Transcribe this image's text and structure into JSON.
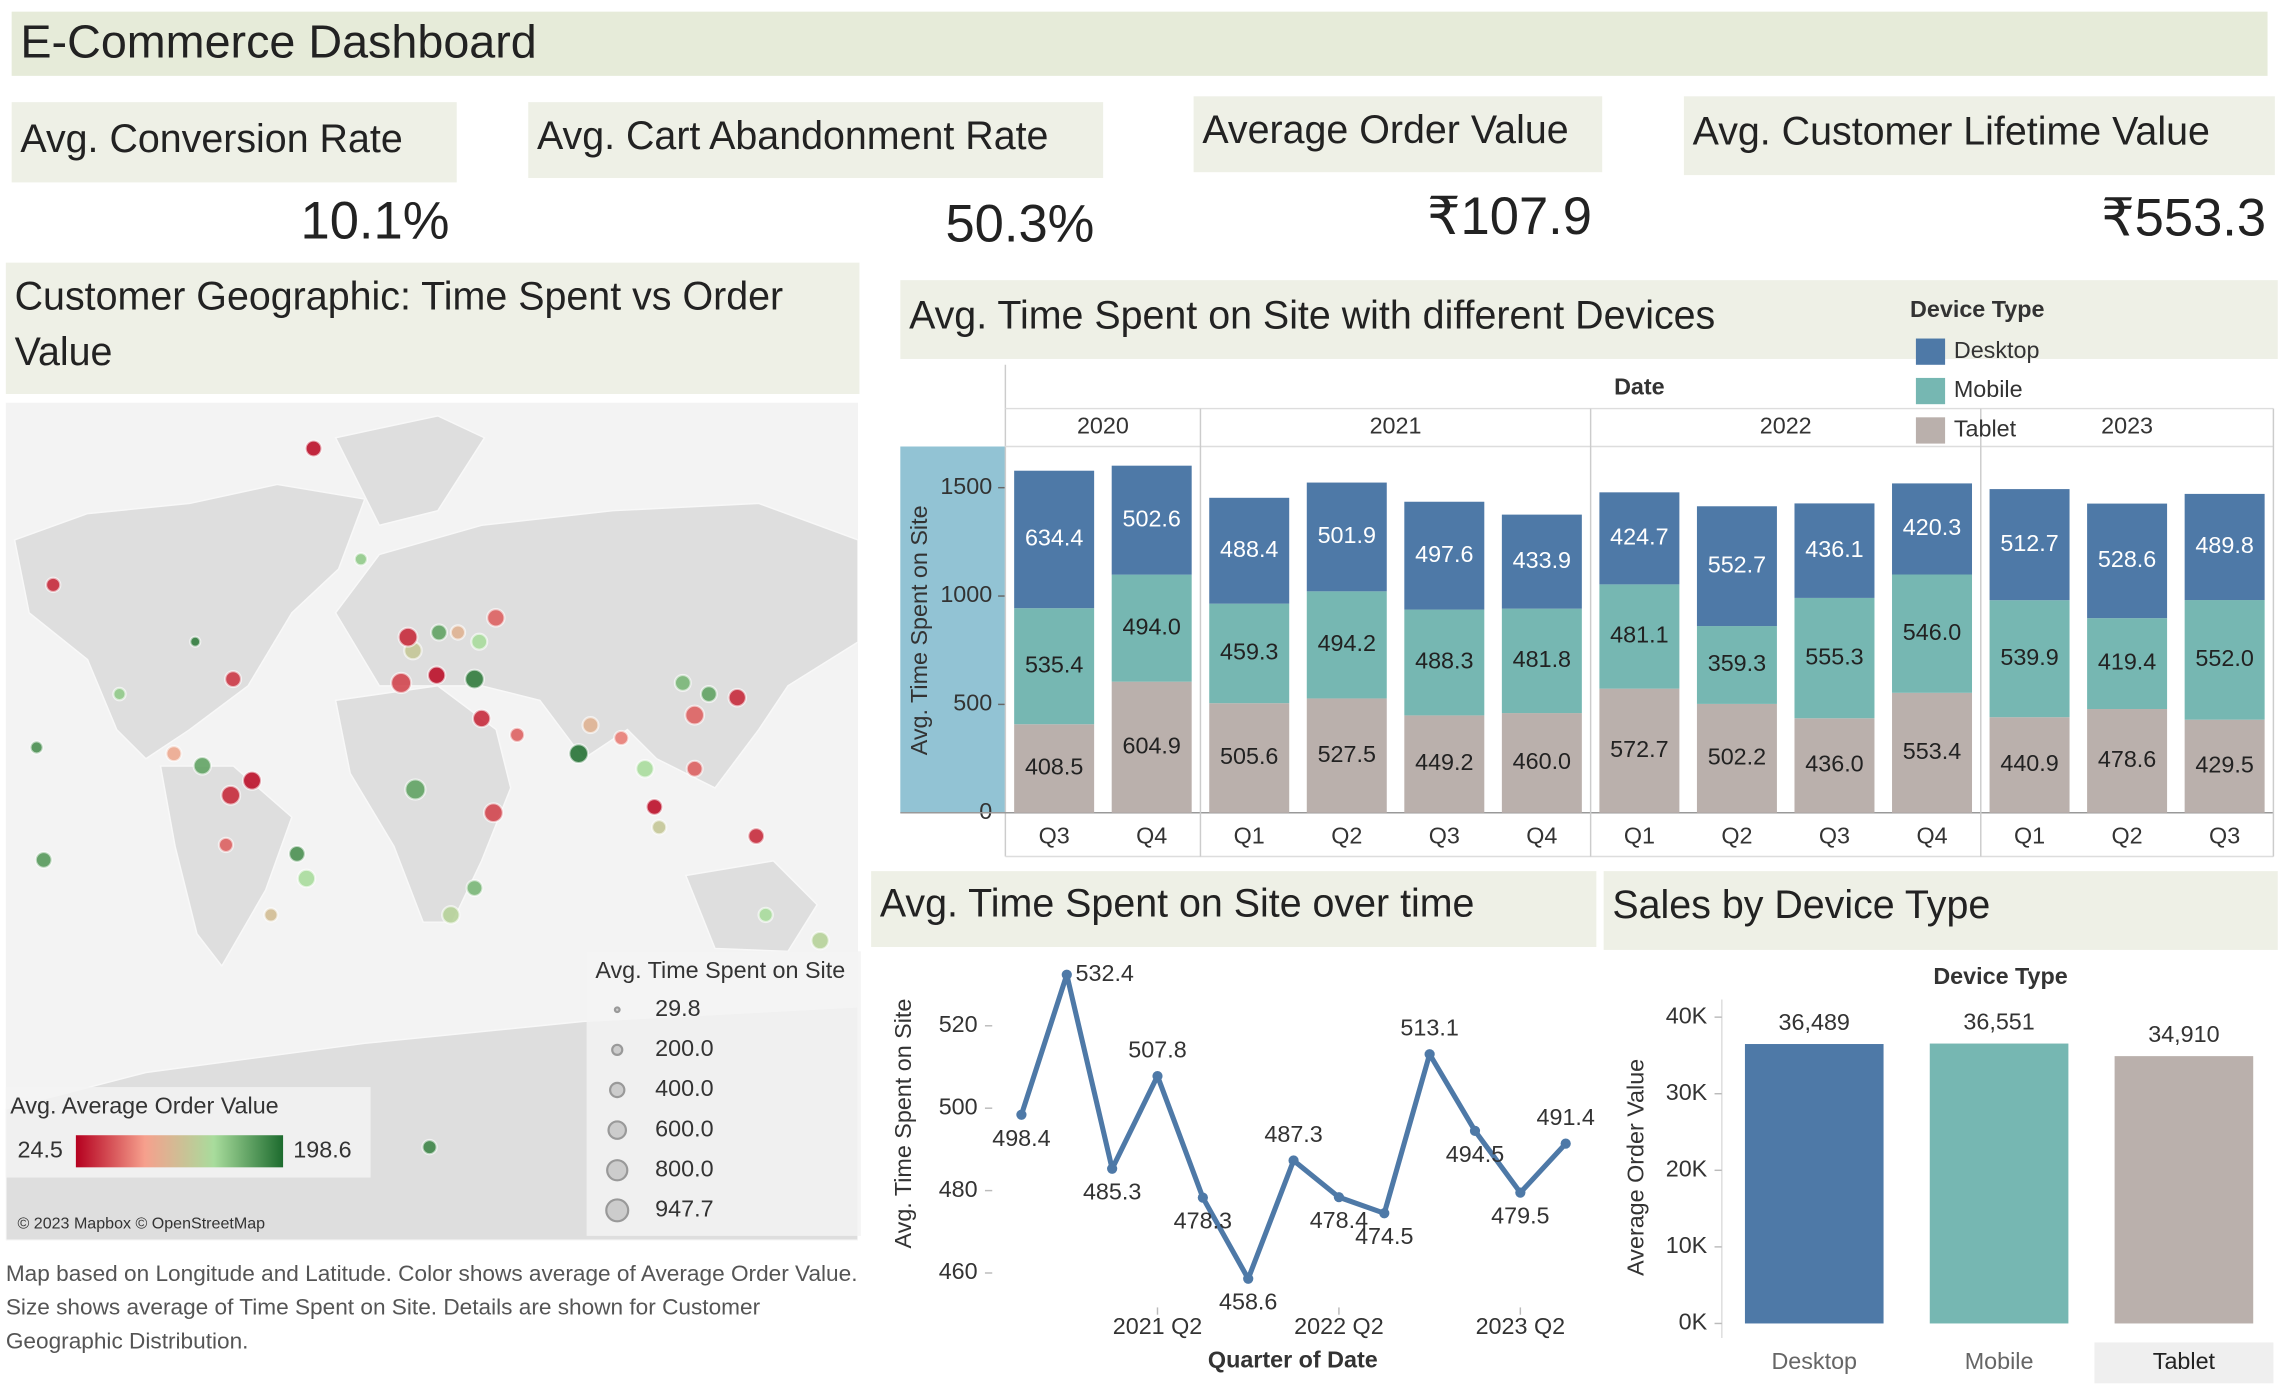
{
  "title": "E-Commerce Dashboard",
  "kpis": [
    {
      "label": "Avg. Conversion Rate",
      "value": "10.1%"
    },
    {
      "label": "Avg. Cart Abandonment Rate",
      "value": "50.3%"
    },
    {
      "label": "Average Order Value",
      "value": "₹107.9"
    },
    {
      "label": "Avg. Customer Lifetime Value",
      "value": "₹553.3"
    }
  ],
  "chart_data": [
    {
      "type": "symbol_map",
      "title": "Customer Geographic: Time Spent vs Order Value",
      "color_label": "Avg. Average Order Value",
      "color_range": [
        24.5,
        198.6
      ],
      "colors": [
        "#b5001f",
        "#f6a08d",
        "#a8dc9c",
        "#1d6b2e"
      ],
      "size_label": "Avg. Time Spent on Site",
      "size_legend": [
        29.8,
        {
          "value": 200,
          "label": "200.0"
        },
        {
          "value": 400,
          "label": "400.0"
        },
        {
          "value": 600,
          "label": "600.0"
        },
        {
          "value": 800,
          "label": "800.0"
        },
        947.7
      ],
      "attribution": "© 2023 Mapbox © OpenStreetMap",
      "caption": "Map based on Longitude and Latitude.  Color shows average of Average Order Value.  Size shows average of Time Spent on Site.  Details are shown for Customer Geographic Distribution.",
      "points": [
        {
          "lon": -122,
          "lat": 37,
          "value": 150,
          "size": 300
        },
        {
          "lon": -74,
          "lat": 41,
          "value": 45,
          "size": 500
        },
        {
          "lon": -99,
          "lat": 19,
          "value": 90,
          "size": 450
        },
        {
          "lon": -87,
          "lat": 15,
          "value": 170,
          "size": 600
        },
        {
          "lon": -75,
          "lat": 5,
          "value": 40,
          "size": 700
        },
        {
          "lon": -66,
          "lat": 10,
          "value": 30,
          "size": 650
        },
        {
          "lon": -77,
          "lat": -12,
          "value": 60,
          "size": 400
        },
        {
          "lon": -47,
          "lat": -15,
          "value": 180,
          "size": 500
        },
        {
          "lon": -58,
          "lat": -34,
          "value": 110,
          "size": 350
        },
        {
          "lon": -43,
          "lat": -23,
          "value": 140,
          "size": 600
        },
        {
          "lon": -90,
          "lat": 50,
          "value": 190,
          "size": 200
        },
        {
          "lon": -40,
          "lat": 77,
          "value": 30,
          "size": 500
        },
        {
          "lon": -20,
          "lat": 65,
          "value": 150,
          "size": 300
        },
        {
          "lon": -3,
          "lat": 40,
          "value": 50,
          "size": 800
        },
        {
          "lon": 2,
          "lat": 48,
          "value": 120,
          "size": 600
        },
        {
          "lon": 13,
          "lat": 52,
          "value": 170,
          "size": 500
        },
        {
          "lon": -0.1,
          "lat": 51,
          "value": 40,
          "size": 700
        },
        {
          "lon": 12,
          "lat": 42,
          "value": 30,
          "size": 600
        },
        {
          "lon": 21,
          "lat": 52,
          "value": 100,
          "size": 400
        },
        {
          "lon": 30,
          "lat": 50,
          "value": 140,
          "size": 500
        },
        {
          "lon": 37,
          "lat": 55,
          "value": 60,
          "size": 600
        },
        {
          "lon": 28,
          "lat": 41,
          "value": 190,
          "size": 700
        },
        {
          "lon": 31,
          "lat": 30,
          "value": 40,
          "size": 600
        },
        {
          "lon": 3,
          "lat": 7,
          "value": 170,
          "size": 800
        },
        {
          "lon": 36,
          "lat": -1,
          "value": 50,
          "size": 700
        },
        {
          "lon": 18,
          "lat": -34,
          "value": 130,
          "size": 600
        },
        {
          "lon": 28,
          "lat": -26,
          "value": 160,
          "size": 500
        },
        {
          "lon": 46,
          "lat": 25,
          "value": 60,
          "size": 400
        },
        {
          "lon": 72,
          "lat": 19,
          "value": 195,
          "size": 700
        },
        {
          "lon": 77,
          "lat": 28,
          "value": 100,
          "size": 500
        },
        {
          "lon": 90,
          "lat": 24,
          "value": 70,
          "size": 400
        },
        {
          "lon": 100,
          "lat": 14,
          "value": 140,
          "size": 600
        },
        {
          "lon": 104,
          "lat": 1,
          "value": 30,
          "size": 500
        },
        {
          "lon": 106,
          "lat": -6,
          "value": 120,
          "size": 400
        },
        {
          "lon": 116,
          "lat": 40,
          "value": 160,
          "size": 500
        },
        {
          "lon": 121,
          "lat": 31,
          "value": 60,
          "size": 700
        },
        {
          "lon": 139,
          "lat": 36,
          "value": 40,
          "size": 600
        },
        {
          "lon": 127,
          "lat": 37,
          "value": 170,
          "size": 500
        },
        {
          "lon": 121,
          "lat": 14,
          "value": 60,
          "size": 500
        },
        {
          "lon": 151,
          "lat": -34,
          "value": 140,
          "size": 400
        },
        {
          "lon": 174,
          "lat": -41,
          "value": 130,
          "size": 600
        },
        {
          "lon": 147,
          "lat": -9,
          "value": 40,
          "size": 500
        },
        {
          "lon": -157,
          "lat": 21,
          "value": 180,
          "size": 300
        },
        {
          "lon": -150,
          "lat": 61,
          "value": 40,
          "size": 400
        },
        {
          "lon": -154,
          "lat": -17,
          "value": 175,
          "size": 500
        },
        {
          "lon": 9,
          "lat": -75,
          "value": 185,
          "size": 400
        }
      ]
    },
    {
      "type": "stacked_bar",
      "title": "Avg. Time Spent on Site with different Devices",
      "header": "Date",
      "legend_title": "Device Type",
      "ylabel": "Avg. Time Spent on Site",
      "ylim": [
        0,
        1690
      ],
      "yticks": [
        0,
        500,
        1000,
        1500
      ],
      "groups": [
        {
          "name": "2020",
          "categories": [
            "Q3",
            "Q4"
          ]
        },
        {
          "name": "2021",
          "categories": [
            "Q1",
            "Q2",
            "Q3",
            "Q4"
          ]
        },
        {
          "name": "2022",
          "categories": [
            "Q1",
            "Q2",
            "Q3",
            "Q4"
          ]
        },
        {
          "name": "2023",
          "categories": [
            "Q1",
            "Q2",
            "Q3"
          ]
        }
      ],
      "series": [
        {
          "name": "Tablet",
          "color": "#bab0ac",
          "values": [
            408.5,
            604.9,
            505.6,
            527.5,
            449.2,
            460.0,
            572.7,
            502.2,
            436.0,
            553.4,
            440.9,
            478.6,
            429.5
          ],
          "value_labels": [
            "408.5",
            "604.9",
            "505.6",
            "527.5",
            "449.2",
            "460.0",
            "572.7",
            "502.2",
            "436.0",
            "553.4",
            "440.9",
            "478.6",
            "429.5"
          ]
        },
        {
          "name": "Mobile",
          "color": "#76b7b2",
          "values": [
            535.4,
            494.0,
            459.3,
            494.2,
            488.3,
            481.8,
            481.1,
            359.3,
            555.3,
            546.0,
            539.9,
            419.4,
            552.0
          ],
          "value_labels": [
            "535.4",
            "494.0",
            "459.3",
            "494.2",
            "488.3",
            "481.8",
            "481.1",
            "359.3",
            "555.3",
            "546.0",
            "539.9",
            "419.4",
            "552.0"
          ]
        },
        {
          "name": "Desktop",
          "color": "#4e79a7",
          "values": [
            634.4,
            502.6,
            488.4,
            501.9,
            497.6,
            433.9,
            424.7,
            552.7,
            436.1,
            420.3,
            512.7,
            528.6,
            489.8
          ],
          "value_labels": [
            "634.4",
            "502.6",
            "488.4",
            "501.9",
            "497.6",
            "433.9",
            "424.7",
            "552.7",
            "436.1",
            "420.3",
            "512.7",
            "528.6",
            "489.8"
          ]
        }
      ]
    },
    {
      "type": "line",
      "title": "Avg. Time Spent on Site over time",
      "xlabel": "Quarter of Date",
      "ylabel": "Avg. Time Spent on Site",
      "color": "#4e79a7",
      "categories": [
        null,
        null,
        null,
        "2021 Q2",
        null,
        null,
        null,
        "2022 Q2",
        null,
        null,
        null,
        "2023 Q2",
        null
      ],
      "values": [
        498.4,
        532.4,
        485.3,
        507.8,
        478.3,
        458.6,
        487.3,
        478.4,
        474.5,
        513.1,
        494.5,
        479.5,
        491.4
      ],
      "ylim": [
        452,
        537
      ],
      "yticks": [
        460,
        480,
        500,
        520
      ]
    },
    {
      "type": "bar",
      "title": "Sales by Device Type",
      "header": "Device Type",
      "ylabel": "Average Order Value",
      "categories": [
        "Desktop",
        "Mobile",
        "Tablet"
      ],
      "colors": [
        "#4e79a7",
        "#76b7b2",
        "#bab0ac"
      ],
      "values": [
        36489,
        36551,
        34910
      ],
      "value_labels": [
        "36,489",
        "36,551",
        "34,910"
      ],
      "ylim": [
        0,
        42300
      ],
      "yticks": [
        {
          "value": 0,
          "label": "0K"
        },
        {
          "value": 10000,
          "label": "10K"
        },
        {
          "value": 20000,
          "label": "20K"
        },
        {
          "value": 30000,
          "label": "30K"
        },
        {
          "value": 40000,
          "label": "40K"
        }
      ]
    }
  ]
}
